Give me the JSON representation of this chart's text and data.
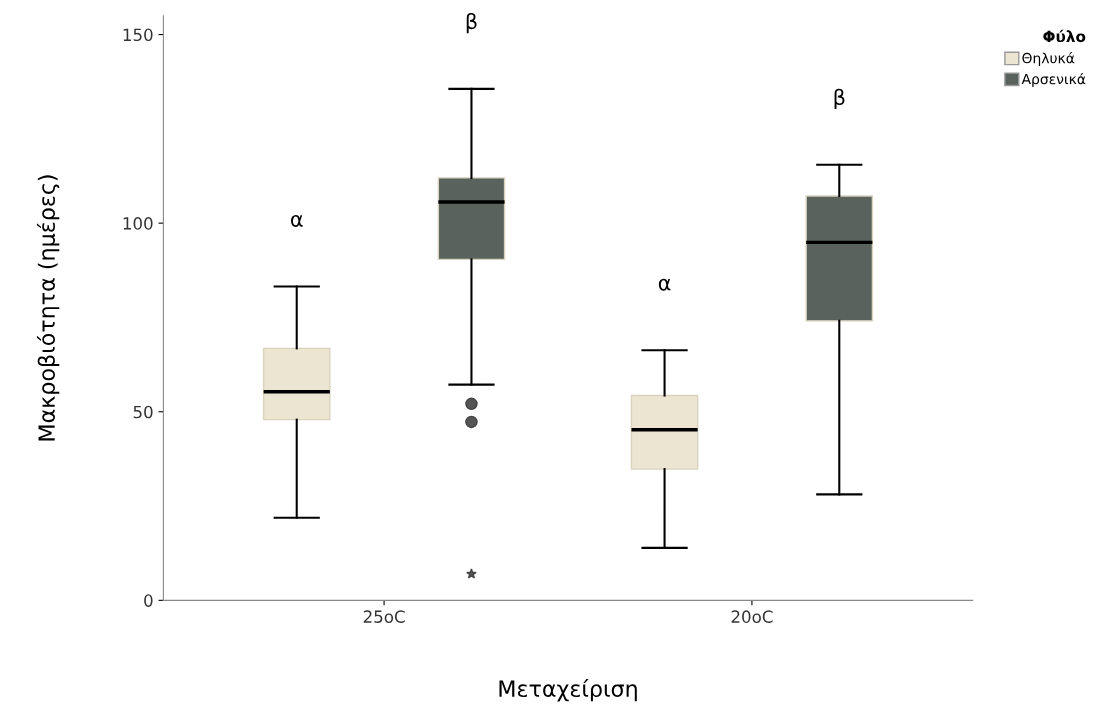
{
  "chart_data": {
    "type": "box",
    "xlabel": "Μεταχείριση",
    "ylabel": "Μακροβιότητα (ημέρες)",
    "legend_title": "Φύλο",
    "categories": [
      "25oC",
      "20oC"
    ],
    "series": [
      {
        "name": "Θηλυκά",
        "color": "#ebe5d2",
        "boxes": [
          {
            "low": 21.9,
            "q1": 47.9,
            "median": 55.3,
            "q3": 66.8,
            "high": 83.2
          },
          {
            "low": 13.9,
            "q1": 34.8,
            "median": 45.2,
            "q3": 54.3,
            "high": 66.3
          }
        ]
      },
      {
        "name": "Αρσενικά",
        "color": "#59625c",
        "boxes": [
          {
            "low": 57.2,
            "q1": 90.4,
            "median": 105.6,
            "q3": 112.0,
            "high": 135.6,
            "outliers": [
              52.1,
              47.3,
              7.0
            ]
          },
          {
            "low": 28.1,
            "q1": 74.1,
            "median": 94.9,
            "q3": 107.2,
            "high": 115.5
          }
        ]
      }
    ],
    "annotations": [
      "α",
      "β",
      "α",
      "β"
    ],
    "ylim": [
      0,
      155
    ],
    "yticks": [
      0,
      50,
      100,
      150
    ],
    "grid": false,
    "legend": "top right"
  }
}
